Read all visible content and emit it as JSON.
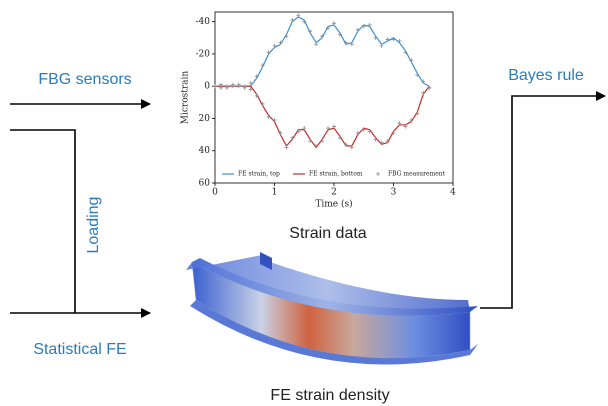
{
  "labels": {
    "fbg_sensors": "FBG sensors",
    "loading": "Loading",
    "statistical_fe": "Statistical FE",
    "bayes_rule": "Bayes rule",
    "strain_data": "Strain data",
    "fe_strain_density": "FE strain density"
  },
  "chart_data": {
    "type": "line",
    "x_label": "Time (s)",
    "y_label": "Microstrain",
    "xlim": [
      0,
      4
    ],
    "xticks": [
      0,
      1,
      2,
      3,
      4
    ],
    "ylim": [
      60,
      -46
    ],
    "yticks": [
      -40,
      -20,
      0,
      20,
      40,
      60
    ],
    "series": [
      {
        "name": "FE strain, top",
        "color": "#3b8fd6",
        "kind": "line",
        "x": [
          0,
          0.1,
          0.2,
          0.3,
          0.4,
          0.5,
          0.6,
          0.7,
          0.8,
          0.9,
          1.0,
          1.1,
          1.2,
          1.3,
          1.4,
          1.5,
          1.6,
          1.7,
          1.8,
          1.9,
          2.0,
          2.1,
          2.2,
          2.3,
          2.4,
          2.5,
          2.6,
          2.7,
          2.8,
          2.9,
          3.0,
          3.1,
          3.2,
          3.3,
          3.4,
          3.5,
          3.6
        ],
        "values": [
          0,
          0,
          0,
          0,
          0,
          0,
          0,
          -5,
          -12,
          -20,
          -24,
          -26,
          -32,
          -40,
          -43,
          -41,
          -33,
          -27,
          -30,
          -37,
          -38,
          -33,
          -26,
          -27,
          -34,
          -38,
          -37,
          -31,
          -26,
          -28,
          -30,
          -27,
          -22,
          -15,
          -8,
          -2,
          0
        ]
      },
      {
        "name": "FE strain, bottom",
        "color": "#c62828",
        "kind": "line",
        "x": [
          0,
          0.1,
          0.2,
          0.3,
          0.4,
          0.5,
          0.6,
          0.7,
          0.8,
          0.9,
          1.0,
          1.1,
          1.2,
          1.3,
          1.4,
          1.5,
          1.6,
          1.7,
          1.8,
          1.9,
          2.0,
          2.1,
          2.2,
          2.3,
          2.4,
          2.5,
          2.6,
          2.7,
          2.8,
          2.9,
          3.0,
          3.1,
          3.2,
          3.3,
          3.4,
          3.5,
          3.6
        ],
        "values": [
          0,
          0,
          0,
          0,
          0,
          0,
          0,
          5,
          12,
          18,
          22,
          30,
          37,
          33,
          27,
          27,
          33,
          38,
          33,
          27,
          26,
          31,
          37,
          37,
          30,
          26,
          27,
          32,
          36,
          35,
          28,
          24,
          24,
          22,
          16,
          5,
          0
        ]
      },
      {
        "name": "FBG measurement",
        "color": "#8a8a8a",
        "kind": "scatter",
        "x": [
          0,
          0.1,
          0.2,
          0.3,
          0.4,
          0.5,
          0.6,
          0.7,
          0.8,
          0.9,
          1.0,
          1.1,
          1.2,
          1.3,
          1.4,
          1.5,
          1.6,
          1.7,
          1.8,
          1.9,
          2.0,
          2.1,
          2.2,
          2.3,
          2.4,
          2.5,
          2.6,
          2.7,
          2.8,
          2.9,
          3.0,
          3.1,
          3.2,
          3.3,
          3.4,
          3.5,
          3.6,
          0,
          0.1,
          0.2,
          0.3,
          0.4,
          0.5,
          0.6,
          0.7,
          0.8,
          0.9,
          1.0,
          1.1,
          1.2,
          1.3,
          1.4,
          1.5,
          1.6,
          1.7,
          1.8,
          1.9,
          2.0,
          2.1,
          2.2,
          2.3,
          2.4,
          2.5,
          2.6,
          2.7,
          2.8,
          2.9,
          3.0,
          3.1,
          3.2,
          3.3,
          3.4,
          3.5,
          3.6
        ],
        "values": [
          0,
          1,
          0,
          -1,
          0,
          1,
          -2,
          -6,
          -13,
          -21,
          -25,
          -27,
          -31,
          -41,
          -44,
          -40,
          -34,
          -26,
          -31,
          -36,
          -39,
          -32,
          -27,
          -26,
          -35,
          -37,
          -38,
          -30,
          -25,
          -29,
          -29,
          -28,
          -21,
          -16,
          -7,
          -3,
          1,
          0,
          -1,
          1,
          0,
          -1,
          0,
          2,
          6,
          11,
          19,
          21,
          29,
          38,
          32,
          28,
          26,
          34,
          37,
          34,
          26,
          25,
          32,
          36,
          38,
          29,
          27,
          28,
          33,
          35,
          34,
          29,
          23,
          25,
          21,
          17,
          4,
          1
        ]
      }
    ]
  }
}
